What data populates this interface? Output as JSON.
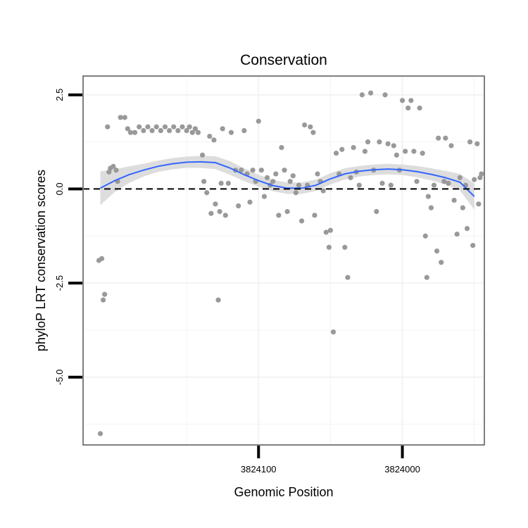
{
  "chart_data": {
    "type": "scatter",
    "title": "Conservation",
    "xlabel": "Genomic Position",
    "ylabel": "phyloP LRT conservation scores",
    "x_reversed": true,
    "xlim": [
      3824222,
      3823943
    ],
    "ylim": [
      -6.8,
      3.0
    ],
    "x_ticks": [
      {
        "value": 3824100,
        "label": "3824100"
      },
      {
        "value": 3824000,
        "label": "3824000"
      }
    ],
    "y_ticks": [
      {
        "value": 2.5,
        "label": "2.5"
      },
      {
        "value": 0.0,
        "label": "0.0"
      },
      {
        "value": -2.5,
        "label": "-2.5"
      },
      {
        "value": -5.0,
        "label": "-5.0"
      }
    ],
    "x_minor_grid": [
      3824150,
      3824050,
      3823950
    ],
    "y_minor_grid": [
      1.25,
      -1.25,
      -3.75,
      -6.25
    ],
    "reference_line": {
      "y": 0.0,
      "style": "dashed"
    },
    "grid": true,
    "colors": {
      "points": "#999999",
      "smooth": "#3366ff",
      "ribbon": "#d9d9d9",
      "panel_border": "#7f7f7f",
      "grid": "#f2f2f2"
    },
    "smooth": {
      "x": [
        3824210,
        3824200,
        3824190,
        3824180,
        3824170,
        3824160,
        3824150,
        3824140,
        3824130,
        3824120,
        3824110,
        3824100,
        3824090,
        3824080,
        3824070,
        3824060,
        3824050,
        3824040,
        3824030,
        3824020,
        3824010,
        3824000,
        3823990,
        3823980,
        3823970,
        3823960,
        3823950
      ],
      "y": [
        0.02,
        0.22,
        0.38,
        0.5,
        0.6,
        0.67,
        0.71,
        0.72,
        0.7,
        0.56,
        0.38,
        0.22,
        0.09,
        0.02,
        0.02,
        0.1,
        0.27,
        0.4,
        0.47,
        0.51,
        0.53,
        0.51,
        0.46,
        0.39,
        0.3,
        0.18,
        -0.2
      ],
      "se": [
        0.45,
        0.3,
        0.22,
        0.17,
        0.15,
        0.15,
        0.15,
        0.16,
        0.17,
        0.18,
        0.17,
        0.16,
        0.15,
        0.15,
        0.15,
        0.15,
        0.15,
        0.15,
        0.14,
        0.14,
        0.14,
        0.14,
        0.15,
        0.16,
        0.18,
        0.22,
        0.35
      ]
    },
    "points": [
      {
        "x": 3824210,
        "y": -6.5
      },
      {
        "x": 3824211,
        "y": -1.9
      },
      {
        "x": 3824209,
        "y": -1.85
      },
      {
        "x": 3824208,
        "y": -2.95
      },
      {
        "x": 3824207,
        "y": -2.8
      },
      {
        "x": 3824205,
        "y": 1.65
      },
      {
        "x": 3824204,
        "y": 0.45
      },
      {
        "x": 3824203,
        "y": 0.55
      },
      {
        "x": 3824201,
        "y": 0.6
      },
      {
        "x": 3824199,
        "y": 0.5
      },
      {
        "x": 3824198,
        "y": 0.2
      },
      {
        "x": 3824196,
        "y": 1.9
      },
      {
        "x": 3824193,
        "y": 1.9
      },
      {
        "x": 3824191,
        "y": 1.6
      },
      {
        "x": 3824189,
        "y": 1.5
      },
      {
        "x": 3824186,
        "y": 1.5
      },
      {
        "x": 3824183,
        "y": 1.65
      },
      {
        "x": 3824180,
        "y": 1.55
      },
      {
        "x": 3824177,
        "y": 1.65
      },
      {
        "x": 3824174,
        "y": 1.55
      },
      {
        "x": 3824171,
        "y": 1.65
      },
      {
        "x": 3824168,
        "y": 1.55
      },
      {
        "x": 3824165,
        "y": 1.65
      },
      {
        "x": 3824162,
        "y": 1.55
      },
      {
        "x": 3824159,
        "y": 1.65
      },
      {
        "x": 3824156,
        "y": 1.55
      },
      {
        "x": 3824153,
        "y": 1.65
      },
      {
        "x": 3824150,
        "y": 1.55
      },
      {
        "x": 3824148,
        "y": 1.65
      },
      {
        "x": 3824146,
        "y": 1.5
      },
      {
        "x": 3824144,
        "y": 1.6
      },
      {
        "x": 3824142,
        "y": 1.5
      },
      {
        "x": 3824139,
        "y": 0.9
      },
      {
        "x": 3824138,
        "y": 0.2
      },
      {
        "x": 3824136,
        "y": -0.1
      },
      {
        "x": 3824134,
        "y": 1.4
      },
      {
        "x": 3824133,
        "y": -0.65
      },
      {
        "x": 3824131,
        "y": 1.3
      },
      {
        "x": 3824130,
        "y": -0.4
      },
      {
        "x": 3824128,
        "y": -2.95
      },
      {
        "x": 3824127,
        "y": -0.6
      },
      {
        "x": 3824126,
        "y": 0.15
      },
      {
        "x": 3824125,
        "y": 1.6
      },
      {
        "x": 3824123,
        "y": -0.7
      },
      {
        "x": 3824121,
        "y": 0.15
      },
      {
        "x": 3824119,
        "y": 1.5
      },
      {
        "x": 3824116,
        "y": 0.5
      },
      {
        "x": 3824114,
        "y": -0.45
      },
      {
        "x": 3824112,
        "y": 0.5
      },
      {
        "x": 3824110,
        "y": 1.55
      },
      {
        "x": 3824108,
        "y": 0.4
      },
      {
        "x": 3824106,
        "y": -0.35
      },
      {
        "x": 3824104,
        "y": 0.5
      },
      {
        "x": 3824102,
        "y": 0.2
      },
      {
        "x": 3824100,
        "y": 1.8
      },
      {
        "x": 3824098,
        "y": 0.5
      },
      {
        "x": 3824096,
        "y": -0.2
      },
      {
        "x": 3824094,
        "y": 0.3
      },
      {
        "x": 3824092,
        "y": 0.1
      },
      {
        "x": 3824090,
        "y": 0.2
      },
      {
        "x": 3824088,
        "y": 0.4
      },
      {
        "x": 3824086,
        "y": -0.7
      },
      {
        "x": 3824084,
        "y": 1.1
      },
      {
        "x": 3824082,
        "y": 0.5
      },
      {
        "x": 3824080,
        "y": -0.6
      },
      {
        "x": 3824078,
        "y": 0.2
      },
      {
        "x": 3824076,
        "y": 0.35
      },
      {
        "x": 3824074,
        "y": -0.1
      },
      {
        "x": 3824072,
        "y": 0.1
      },
      {
        "x": 3824070,
        "y": -0.85
      },
      {
        "x": 3824068,
        "y": 1.7
      },
      {
        "x": 3824066,
        "y": 0.1
      },
      {
        "x": 3824064,
        "y": 1.65
      },
      {
        "x": 3824062,
        "y": 1.5
      },
      {
        "x": 3824061,
        "y": -0.7
      },
      {
        "x": 3824059,
        "y": 0.4
      },
      {
        "x": 3824057,
        "y": 0.2
      },
      {
        "x": 3824055,
        "y": -0.05
      },
      {
        "x": 3824053,
        "y": -1.15
      },
      {
        "x": 3824051,
        "y": -1.55
      },
      {
        "x": 3824050,
        "y": -1.1
      },
      {
        "x": 3824048,
        "y": -3.8
      },
      {
        "x": 3824046,
        "y": 0.95
      },
      {
        "x": 3824044,
        "y": 0.4
      },
      {
        "x": 3824042,
        "y": 1.05
      },
      {
        "x": 3824040,
        "y": -1.55
      },
      {
        "x": 3824038,
        "y": -2.35
      },
      {
        "x": 3824036,
        "y": 0.3
      },
      {
        "x": 3824034,
        "y": 1.1
      },
      {
        "x": 3824032,
        "y": 0.45
      },
      {
        "x": 3824030,
        "y": 0.1
      },
      {
        "x": 3824028,
        "y": 2.5
      },
      {
        "x": 3824026,
        "y": 1.0
      },
      {
        "x": 3824024,
        "y": 1.25
      },
      {
        "x": 3824022,
        "y": 2.55
      },
      {
        "x": 3824020,
        "y": 0.5
      },
      {
        "x": 3824018,
        "y": -0.6
      },
      {
        "x": 3824016,
        "y": 1.25
      },
      {
        "x": 3824014,
        "y": 0.15
      },
      {
        "x": 3824012,
        "y": 2.5
      },
      {
        "x": 3824010,
        "y": 1.2
      },
      {
        "x": 3824008,
        "y": 0.1
      },
      {
        "x": 3824006,
        "y": 1.15
      },
      {
        "x": 3824004,
        "y": 0.9
      },
      {
        "x": 3824002,
        "y": 0.5
      },
      {
        "x": 3824000,
        "y": 2.35
      },
      {
        "x": 3823998,
        "y": 1.0
      },
      {
        "x": 3823996,
        "y": 2.15
      },
      {
        "x": 3823994,
        "y": 2.35
      },
      {
        "x": 3823992,
        "y": 1.0
      },
      {
        "x": 3823990,
        "y": 0.2
      },
      {
        "x": 3823988,
        "y": 2.15
      },
      {
        "x": 3823986,
        "y": 0.95
      },
      {
        "x": 3823984,
        "y": -1.25
      },
      {
        "x": 3823983,
        "y": -2.35
      },
      {
        "x": 3823982,
        "y": -0.2
      },
      {
        "x": 3823980,
        "y": -0.5
      },
      {
        "x": 3823978,
        "y": 0.1
      },
      {
        "x": 3823976,
        "y": -1.65
      },
      {
        "x": 3823975,
        "y": 1.35
      },
      {
        "x": 3823973,
        "y": -1.95
      },
      {
        "x": 3823971,
        "y": 0.2
      },
      {
        "x": 3823970,
        "y": 1.35
      },
      {
        "x": 3823968,
        "y": 0.15
      },
      {
        "x": 3823966,
        "y": 1.15
      },
      {
        "x": 3823964,
        "y": -0.3
      },
      {
        "x": 3823962,
        "y": -1.2
      },
      {
        "x": 3823960,
        "y": 0.3
      },
      {
        "x": 3823958,
        "y": -0.5
      },
      {
        "x": 3823956,
        "y": 0.1
      },
      {
        "x": 3823955,
        "y": -1.05
      },
      {
        "x": 3823953,
        "y": 1.25
      },
      {
        "x": 3823951,
        "y": -1.5
      },
      {
        "x": 3823950,
        "y": 0.25
      },
      {
        "x": 3823948,
        "y": 1.2
      },
      {
        "x": 3823947,
        "y": -0.4
      },
      {
        "x": 3823946,
        "y": 0.3
      },
      {
        "x": 3823945,
        "y": 0.4
      }
    ]
  }
}
